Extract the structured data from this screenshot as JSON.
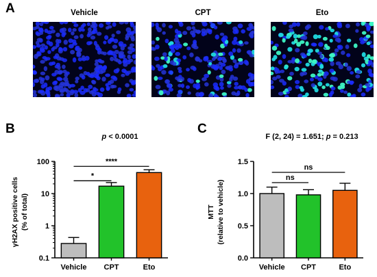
{
  "panels": {
    "a": {
      "letter": "A",
      "images": [
        {
          "label": "Vehicle",
          "green_fraction": 0.0,
          "cells": 320
        },
        {
          "label": "CPT",
          "green_fraction": 0.17,
          "cells": 250
        },
        {
          "label": "Eto",
          "green_fraction": 0.45,
          "cells": 230
        }
      ]
    },
    "b": {
      "letter": "B"
    },
    "c": {
      "letter": "C"
    }
  },
  "chart_data": [
    {
      "type": "bar",
      "panel": "B",
      "title_italic": "p",
      "title_rest": " < 0.0001",
      "ylabel_line1": "γH2AX positive cells",
      "ylabel_line2": "(% of total)",
      "yscale": "log",
      "ylim": [
        0.1,
        100
      ],
      "yticks": [
        0.1,
        1,
        10,
        100
      ],
      "ytick_labels": [
        "0.1",
        "1",
        "10",
        "100"
      ],
      "categories": [
        "Vehicle",
        "CPT",
        "Eto"
      ],
      "values": [
        0.28,
        17,
        45
      ],
      "errors": [
        0.15,
        5,
        10
      ],
      "colors": [
        "#bdbdbd",
        "#22c22a",
        "#e8620e"
      ],
      "significance": [
        {
          "from": 0,
          "to": 1,
          "label": "*",
          "level": 25
        },
        {
          "from": 0,
          "to": 2,
          "label": "****",
          "level": 70
        }
      ]
    },
    {
      "type": "bar",
      "panel": "C",
      "title_pre": "F (2, 24) = 1.651; ",
      "title_italic": "p",
      "title_rest": " = 0.213",
      "ylabel_line1": "MTT",
      "ylabel_line2": "(relative to vehicle)",
      "yscale": "linear",
      "ylim": [
        0,
        1.5
      ],
      "yticks": [
        0,
        0.5,
        1.0,
        1.5
      ],
      "ytick_labels": [
        "0.0",
        "0.5",
        "1.0",
        "1.5"
      ],
      "categories": [
        "Vehicle",
        "CPT",
        "Eto"
      ],
      "values": [
        1.0,
        0.98,
        1.05
      ],
      "errors": [
        0.1,
        0.08,
        0.11
      ],
      "colors": [
        "#bdbdbd",
        "#22c22a",
        "#e8620e"
      ],
      "significance": [
        {
          "from": 0,
          "to": 1,
          "label": "ns",
          "level": 1.17
        },
        {
          "from": 0,
          "to": 2,
          "label": "ns",
          "level": 1.33
        }
      ]
    }
  ]
}
